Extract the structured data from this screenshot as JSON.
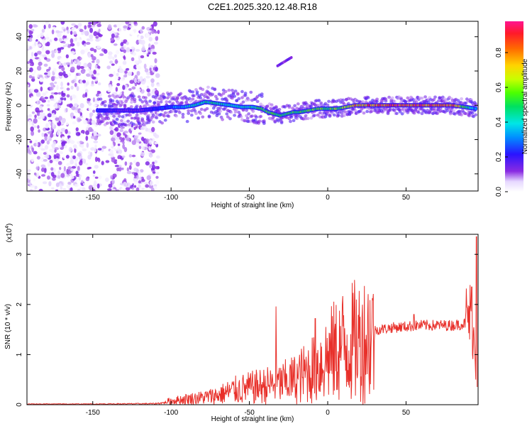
{
  "page_title": "C2E1.2025.320.12.48.R18",
  "colors": {
    "snr_line": "#e8302a",
    "axis": "#000000",
    "background": "#ffffff"
  },
  "chart_data": [
    {
      "type": "heatmap",
      "title": "C2E1.2025.320.12.48.R18",
      "xlabel": "Height of straight line (km)",
      "ylabel": "Frequency (Hz)",
      "xlim": [
        -192,
        96
      ],
      "ylim": [
        -50,
        49
      ],
      "x_ticks": [
        -150,
        -100,
        -50,
        0,
        50
      ],
      "x_tick_labels": [
        "-150",
        "-100",
        "-50",
        "0",
        "50"
      ],
      "y_ticks": [
        -40,
        -20,
        0,
        20,
        40
      ],
      "y_tick_labels": [
        "-40",
        "-20",
        "0",
        "20",
        "40"
      ],
      "ridge": {
        "description": "dominant frequency track (Hz) versus height (km)",
        "x": [
          -147,
          -140,
          -130,
          -120,
          -110,
          -100,
          -92,
          -85,
          -78,
          -70,
          -62,
          -55,
          -48,
          -42,
          -38,
          -34,
          -30,
          -26,
          -22,
          -18,
          -12,
          -6,
          0,
          6,
          12,
          18,
          25,
          40,
          60,
          80,
          95
        ],
        "y": [
          -3,
          -3,
          -3,
          -3,
          -2,
          -1,
          -1,
          0,
          2,
          1,
          0,
          -1,
          -1,
          -2,
          -4,
          -5,
          -6,
          -5,
          -4,
          -4,
          -3,
          -2,
          -2,
          -2,
          -1,
          0,
          0,
          0,
          0,
          0,
          -2
        ],
        "amplitude": [
          0.25,
          0.2,
          0.15,
          0.15,
          0.25,
          0.3,
          0.4,
          0.45,
          0.5,
          0.5,
          0.45,
          0.45,
          0.5,
          0.55,
          0.6,
          0.6,
          0.55,
          0.55,
          0.6,
          0.6,
          0.6,
          0.6,
          0.6,
          0.65,
          0.7,
          0.85,
          0.9,
          0.95,
          0.95,
          0.95,
          0.3
        ]
      },
      "side_feature": {
        "x": [
          -32,
          -23
        ],
        "y": [
          23,
          28
        ],
        "amplitude": 0.1
      },
      "noise_region_x": [
        -192,
        -108
      ]
    },
    {
      "type": "colorbar",
      "label": "Normalized spectral amplitude",
      "range": [
        0,
        0.98
      ],
      "ticks": [
        0.0,
        0.2,
        0.4,
        0.6,
        0.8
      ],
      "tick_labels": [
        "0.0",
        "0.2",
        "0.4",
        "0.6",
        "0.8"
      ]
    },
    {
      "type": "line",
      "xlabel": "Height of straight line (km)",
      "ylabel": "SNR (10 * v/v)",
      "y_multiplier": "(x10",
      "y_multiplier_exp": "4",
      "y_multiplier_close": ")",
      "xlim": [
        -192,
        96
      ],
      "ylim": [
        0,
        3.4
      ],
      "x_ticks": [
        -150,
        -100,
        -50,
        0,
        50
      ],
      "x_tick_labels": [
        "-150",
        "-100",
        "-50",
        "0",
        "50"
      ],
      "y_ticks": [
        0,
        1,
        2,
        3
      ],
      "y_tick_labels": [
        "0",
        "1",
        "2",
        "3"
      ],
      "series": [
        {
          "name": "SNR",
          "x": [
            -192,
            -150,
            -110,
            -100,
            -90,
            -80,
            -70,
            -60,
            -50,
            -40,
            -30,
            -20,
            -10,
            0,
            10,
            20,
            30,
            40,
            60,
            80,
            90,
            92,
            94,
            95
          ],
          "y": [
            0.02,
            0.02,
            0.03,
            0.08,
            0.12,
            0.15,
            0.2,
            0.3,
            0.35,
            0.4,
            0.45,
            0.55,
            0.75,
            1.0,
            1.25,
            1.35,
            1.5,
            1.55,
            1.6,
            1.6,
            1.65,
            1.7,
            1.0,
            0.5
          ]
        }
      ],
      "spikes": [
        {
          "x": -33,
          "y": 1.96
        },
        {
          "x": -8,
          "y": 1.72
        },
        {
          "x": 55,
          "y": 1.8
        },
        {
          "x": 92,
          "y": 2.35
        },
        {
          "x": 95,
          "y": 3.35
        }
      ]
    }
  ]
}
